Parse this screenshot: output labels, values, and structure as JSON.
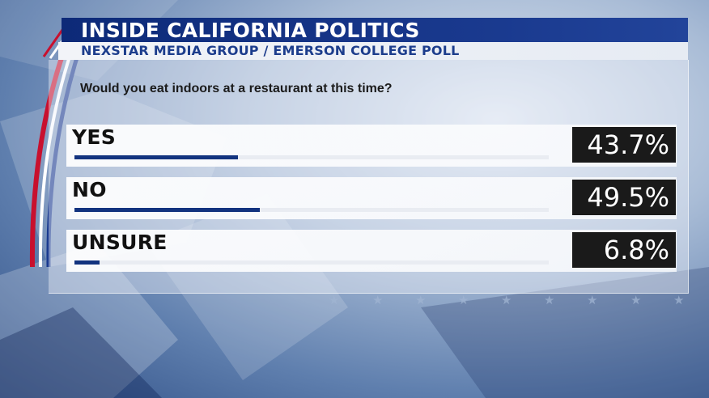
{
  "header": {
    "title": "INSIDE CALIFORNIA POLITICS",
    "subtitle": "NEXSTAR MEDIA GROUP / EMERSON COLLEGE POLL"
  },
  "question": "Would you eat indoors at a restaurant at this time?",
  "chart_data": {
    "type": "bar",
    "orientation": "horizontal",
    "title": "Would you eat indoors at a restaurant at this time?",
    "categories": [
      "YES",
      "NO",
      "UNSURE"
    ],
    "values": [
      43.7,
      49.5,
      6.8
    ],
    "value_labels": [
      "43.7%",
      "49.5%",
      "6.8%"
    ],
    "unit": "%",
    "xlim": [
      0,
      100
    ],
    "grid": false,
    "legend": "none",
    "colors": {
      "bar": "#12337f",
      "track": "#e9ecf2",
      "value_box": "#1a1a1a",
      "value_text": "#ffffff"
    }
  },
  "decor": {
    "star_icon": "star-icon",
    "star_glyph": "★",
    "header_color": "#0d2a78",
    "subheader_text_color": "#1c3d8c",
    "stripe_red": "#c8102e"
  }
}
